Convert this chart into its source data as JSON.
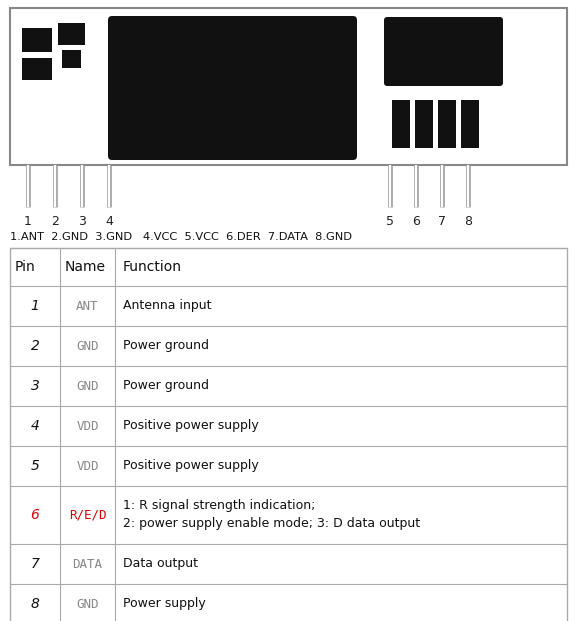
{
  "bg_color": "#ffffff",
  "table_header": [
    "Pin",
    "Name",
    "Function"
  ],
  "table_rows": [
    [
      "1",
      "ANT",
      "Antenna input"
    ],
    [
      "2",
      "GND",
      "Power ground"
    ],
    [
      "3",
      "GND",
      "Power ground"
    ],
    [
      "4",
      "VDD",
      "Positive power supply"
    ],
    [
      "5",
      "VDD",
      "Positive power supply"
    ],
    [
      "6",
      "R/E/D",
      "1: R signal strength indication;\n2: power supply enable mode; 3: D data output"
    ],
    [
      "7",
      "DATA",
      "Data output"
    ],
    [
      "8",
      "GND",
      "Power supply"
    ]
  ],
  "pin_colors": [
    "#111111",
    "#111111",
    "#111111",
    "#111111",
    "#111111",
    "#dd0000",
    "#111111",
    "#111111"
  ],
  "name_colors": [
    "#888888",
    "#888888",
    "#888888",
    "#888888",
    "#888888",
    "#dd0000",
    "#888888",
    "#888888"
  ],
  "pin_label": "1.ANT  2.GND  3.GND   4.VCC  5.VCC  6.DER  7.DATA  8.GND",
  "watermark_color": "#bdd0e0",
  "board_color": "#ffffff",
  "board_border": "#888888",
  "ic_color": "#111111",
  "pin_line_color": "#aaaaaa",
  "table_line_color": "#aaaaaa"
}
